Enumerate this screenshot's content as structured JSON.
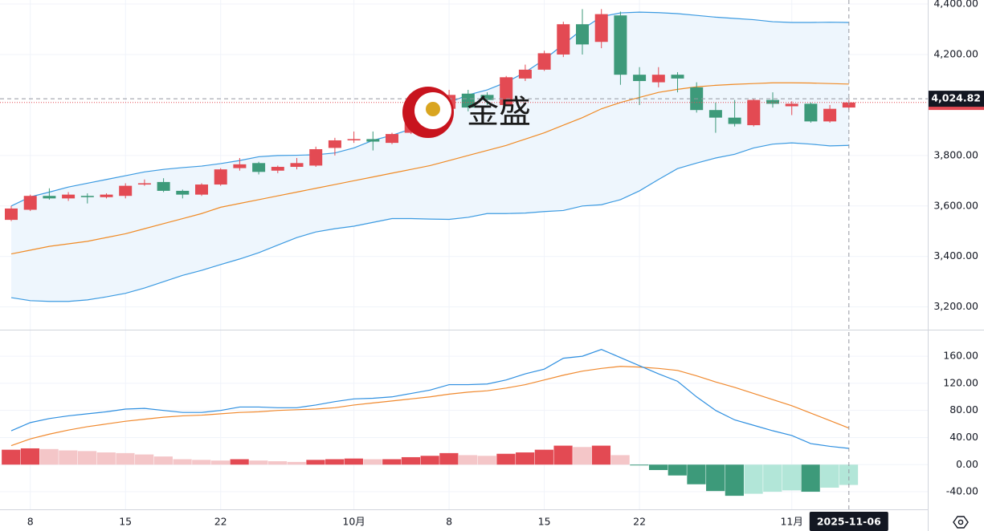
{
  "chart_data": [
    {
      "type": "candlestick",
      "watermark": "金盛",
      "categories": [
        null,
        "8",
        null,
        null,
        null,
        null,
        "15",
        null,
        null,
        null,
        null,
        "22",
        null,
        null,
        null,
        null,
        null,
        null,
        "10月",
        null,
        null,
        null,
        null,
        "8",
        null,
        null,
        null,
        null,
        "15",
        null,
        null,
        null,
        null,
        "22",
        null,
        null,
        null,
        null,
        null,
        null,
        null,
        "11月",
        null,
        null,
        "2025-11-06"
      ],
      "open": [
        3545,
        3585,
        3640,
        3630,
        3640,
        3635,
        3640,
        3685,
        3695,
        3660,
        3645,
        3685,
        3750,
        3770,
        3740,
        3755,
        3760,
        3830,
        3860,
        3865,
        3850,
        3890,
        3965,
        3985,
        4045,
        4040,
        4000,
        4105,
        4140,
        4200,
        4320,
        4250,
        4355,
        4120,
        4090,
        4120,
        4070,
        3980,
        3950,
        3920,
        4020,
        3995,
        4005,
        3935,
        3990
      ],
      "high": [
        3600,
        3645,
        3670,
        3655,
        3650,
        3650,
        3690,
        3705,
        3710,
        3665,
        3690,
        3750,
        3790,
        3775,
        3760,
        3790,
        3835,
        3870,
        3895,
        3895,
        3890,
        3975,
        4000,
        4060,
        4060,
        4050,
        4115,
        4160,
        4215,
        4330,
        4380,
        4380,
        4370,
        4150,
        4150,
        4130,
        4090,
        4010,
        4020,
        4025,
        4050,
        4015,
        4010,
        4000,
        4020
      ],
      "low": [
        3540,
        3580,
        3625,
        3620,
        3610,
        3630,
        3630,
        3680,
        3655,
        3630,
        3640,
        3680,
        3740,
        3725,
        3730,
        3745,
        3755,
        3800,
        3850,
        3820,
        3845,
        3885,
        3950,
        3980,
        3975,
        4000,
        3995,
        4095,
        4135,
        4190,
        4200,
        4225,
        4080,
        4000,
        4070,
        4050,
        3970,
        3890,
        3915,
        3915,
        3990,
        3960,
        3930,
        3930,
        3980
      ],
      "close": [
        3590,
        3640,
        3630,
        3645,
        3635,
        3645,
        3680,
        3690,
        3660,
        3645,
        3685,
        3745,
        3765,
        3735,
        3755,
        3770,
        3825,
        3860,
        3865,
        3855,
        3885,
        3965,
        3990,
        4040,
        3990,
        4020,
        4110,
        4140,
        4205,
        4320,
        4240,
        4360,
        4120,
        4095,
        4120,
        4105,
        3980,
        3950,
        3925,
        4020,
        4005,
        4005,
        3935,
        3985,
        4010
      ],
      "up_color": "#e34a53",
      "down_color": "#3d9a7a",
      "bands": {
        "upper": [
          3600,
          3636,
          3655,
          3675,
          3690,
          3705,
          3720,
          3735,
          3745,
          3752,
          3758,
          3768,
          3780,
          3795,
          3800,
          3801,
          3803,
          3810,
          3830,
          3860,
          3880,
          3905,
          3950,
          4010,
          4040,
          4060,
          4090,
          4130,
          4180,
          4240,
          4300,
          4350,
          4365,
          4368,
          4366,
          4362,
          4355,
          4348,
          4343,
          4338,
          4330,
          4327,
          4327,
          4328,
          4327
        ],
        "middle": [
          3410,
          3425,
          3440,
          3450,
          3460,
          3475,
          3490,
          3510,
          3530,
          3550,
          3570,
          3595,
          3610,
          3625,
          3640,
          3655,
          3670,
          3685,
          3700,
          3715,
          3730,
          3745,
          3760,
          3780,
          3800,
          3820,
          3840,
          3865,
          3890,
          3920,
          3950,
          3985,
          4010,
          4030,
          4050,
          4062,
          4072,
          4078,
          4082,
          4085,
          4088,
          4088,
          4087,
          4085,
          4083
        ],
        "lower": [
          3237,
          3225,
          3222,
          3222,
          3228,
          3240,
          3254,
          3275,
          3300,
          3325,
          3345,
          3368,
          3390,
          3415,
          3445,
          3475,
          3497,
          3510,
          3520,
          3535,
          3550,
          3550,
          3548,
          3547,
          3555,
          3570,
          3570,
          3572,
          3578,
          3582,
          3600,
          3605,
          3625,
          3660,
          3705,
          3748,
          3770,
          3790,
          3805,
          3830,
          3845,
          3850,
          3845,
          3838,
          3840
        ],
        "band_color": "#3b9ae1",
        "middle_color": "#f08a24",
        "fill": "#eef6fd"
      },
      "current_price": {
        "value": 4024.82,
        "label": "4,024.82"
      },
      "ylim": [
        3110,
        4416
      ],
      "yticks": [
        {
          "value": 3200,
          "label": "3,200.00"
        },
        {
          "value": 3400,
          "label": "3,400.00"
        },
        {
          "value": 3600,
          "label": "3,600.00"
        },
        {
          "value": 3800,
          "label": "3,800.00"
        },
        {
          "value": 4200,
          "label": "4,200.00"
        },
        {
          "value": 4400,
          "label": "4,400.00"
        }
      ],
      "grid": true
    },
    {
      "type": "macd",
      "dif": [
        50,
        62,
        68,
        72,
        75,
        78,
        82,
        83,
        80,
        77,
        77,
        80,
        85,
        85,
        84,
        84,
        88,
        93,
        97,
        98,
        100,
        105,
        110,
        118,
        118,
        119,
        125,
        134,
        141,
        157,
        160,
        170,
        158,
        146,
        134,
        123,
        100,
        80,
        66,
        58,
        50,
        43,
        31,
        27,
        24
      ],
      "dea": [
        28,
        38,
        45,
        51,
        56,
        60,
        64,
        67,
        70,
        72,
        73,
        75,
        77,
        78,
        80,
        81,
        82,
        84,
        88,
        91,
        94,
        97,
        100,
        104,
        107,
        109,
        113,
        118,
        125,
        132,
        138,
        142,
        145,
        144,
        142,
        139,
        131,
        122,
        114,
        105,
        96,
        87,
        76,
        65,
        54
      ],
      "hist": [
        22,
        24,
        23,
        21,
        20,
        18,
        17,
        15,
        12,
        8,
        7,
        6,
        8,
        6,
        5,
        4,
        7,
        8,
        9,
        8,
        8,
        11,
        13,
        17,
        14,
        13,
        16,
        18,
        22,
        28,
        26,
        28,
        14,
        -1,
        -8,
        -16,
        -29,
        -39,
        -46,
        -43,
        -40,
        -38,
        -40,
        -34,
        -30
      ],
      "dif_color": "#2e8fe0",
      "dea_color": "#f0892e",
      "hist_colors": {
        "up_strong": "#e34a53",
        "up_weak": "#f4c6c8",
        "down_strong": "#3d9a7a",
        "down_weak": "#b2e6d8"
      },
      "ylim": [
        -66,
        198
      ],
      "yticks": [
        {
          "value": -40,
          "label": "-40.00"
        },
        {
          "value": 0,
          "label": "0.00"
        },
        {
          "value": 40,
          "label": "40.00"
        },
        {
          "value": 80,
          "label": "80.00"
        },
        {
          "value": 120,
          "label": "120.00"
        },
        {
          "value": 160,
          "label": "160.00"
        }
      ],
      "grid": true
    }
  ]
}
